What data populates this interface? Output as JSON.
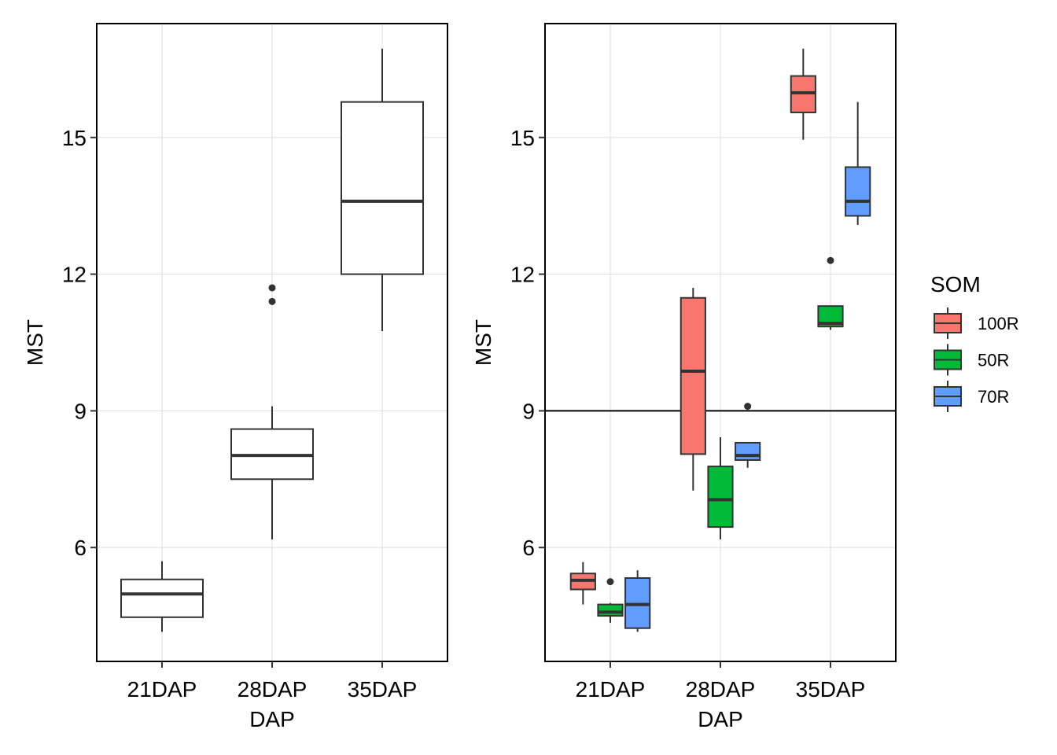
{
  "chart_data": [
    {
      "type": "boxplot",
      "xlabel": "DAP",
      "ylabel": "MST",
      "ylim": [
        3.5,
        17.5
      ],
      "yticks": [
        6,
        9,
        12,
        15
      ],
      "grid": true,
      "categories": [
        "21DAP",
        "28DAP",
        "35DAP"
      ],
      "boxes": [
        {
          "category": "21DAP",
          "lower_whisker": 4.15,
          "q1": 4.47,
          "median": 4.98,
          "q3": 5.3,
          "upper_whisker": 5.7,
          "outliers": []
        },
        {
          "category": "28DAP",
          "lower_whisker": 6.18,
          "q1": 7.5,
          "median": 8.02,
          "q3": 8.6,
          "upper_whisker": 9.1,
          "outliers": [
            11.4,
            11.7
          ]
        },
        {
          "category": "35DAP",
          "lower_whisker": 10.75,
          "q1": 12.0,
          "median": 13.6,
          "q3": 15.78,
          "upper_whisker": 16.95,
          "outliers": []
        }
      ]
    },
    {
      "type": "boxplot",
      "xlabel": "DAP",
      "ylabel": "MST",
      "ylim": [
        3.5,
        17.5
      ],
      "yticks": [
        6,
        9,
        12,
        15
      ],
      "grid": true,
      "hline": 9,
      "categories": [
        "21DAP",
        "28DAP",
        "35DAP"
      ],
      "legend": {
        "title": "SOM",
        "position": "right",
        "entries": [
          {
            "label": "100R",
            "color": "#f8766d"
          },
          {
            "label": "50R",
            "color": "#00ba38"
          },
          {
            "label": "70R",
            "color": "#619cff"
          }
        ]
      },
      "series": [
        {
          "name": "100R",
          "color": "#f8766d",
          "boxes": [
            {
              "category": "21DAP",
              "lower_whisker": 4.75,
              "q1": 5.08,
              "median": 5.28,
              "q3": 5.43,
              "upper_whisker": 5.68,
              "outliers": []
            },
            {
              "category": "28DAP",
              "lower_whisker": 7.25,
              "q1": 8.05,
              "median": 9.87,
              "q3": 11.48,
              "upper_whisker": 11.7,
              "outliers": []
            },
            {
              "category": "35DAP",
              "lower_whisker": 14.95,
              "q1": 15.55,
              "median": 15.98,
              "q3": 16.35,
              "upper_whisker": 16.95,
              "outliers": []
            }
          ]
        },
        {
          "name": "50R",
          "color": "#00ba38",
          "boxes": [
            {
              "category": "21DAP",
              "lower_whisker": 4.35,
              "q1": 4.5,
              "median": 4.58,
              "q3": 4.75,
              "upper_whisker": 4.78,
              "outliers": [
                5.25
              ]
            },
            {
              "category": "28DAP",
              "lower_whisker": 6.18,
              "q1": 6.45,
              "median": 7.05,
              "q3": 7.78,
              "upper_whisker": 8.42,
              "outliers": []
            },
            {
              "category": "35DAP",
              "lower_whisker": 10.78,
              "q1": 10.85,
              "median": 10.92,
              "q3": 11.3,
              "upper_whisker": 11.3,
              "outliers": [
                12.3
              ]
            }
          ]
        },
        {
          "name": "70R",
          "color": "#619cff",
          "boxes": [
            {
              "category": "21DAP",
              "lower_whisker": 4.15,
              "q1": 4.23,
              "median": 4.75,
              "q3": 5.33,
              "upper_whisker": 5.5,
              "outliers": []
            },
            {
              "category": "28DAP",
              "lower_whisker": 7.75,
              "q1": 7.92,
              "median": 8.02,
              "q3": 8.3,
              "upper_whisker": 8.3,
              "outliers": [
                9.1
              ]
            },
            {
              "category": "35DAP",
              "lower_whisker": 13.08,
              "q1": 13.28,
              "median": 13.6,
              "q3": 14.35,
              "upper_whisker": 15.78,
              "outliers": []
            }
          ]
        }
      ]
    }
  ]
}
